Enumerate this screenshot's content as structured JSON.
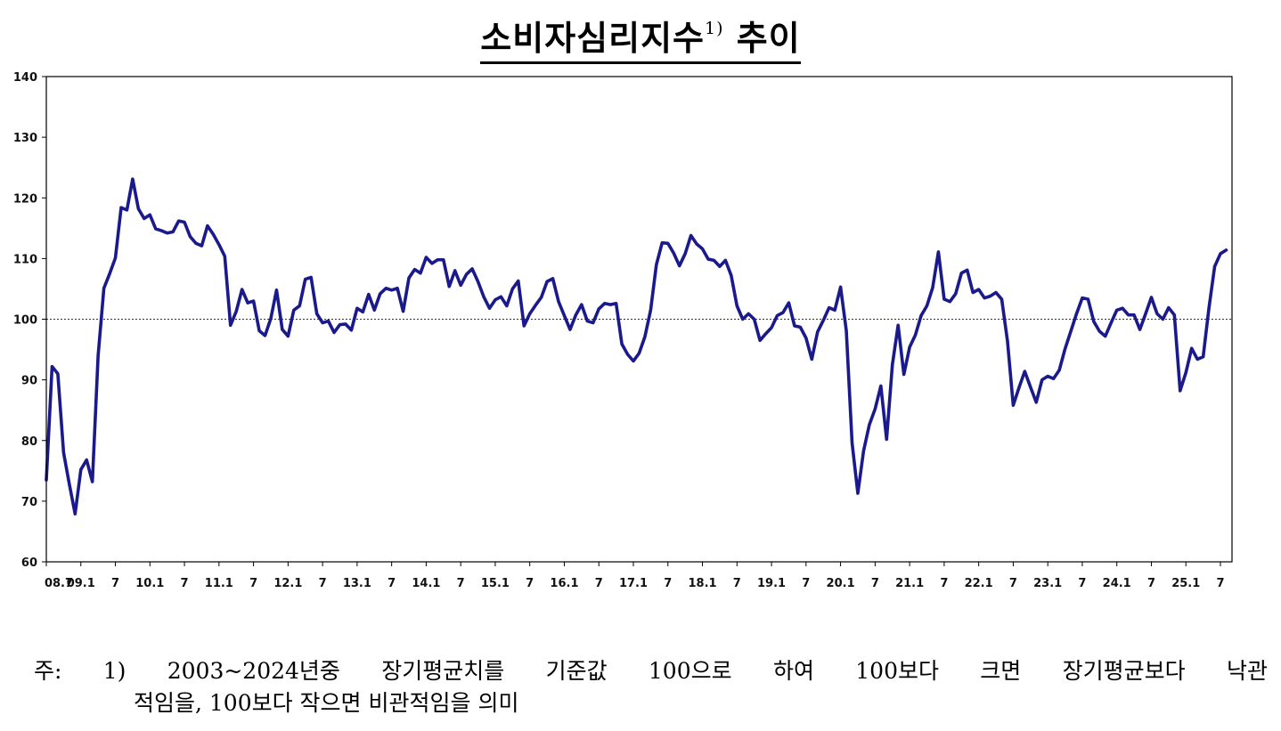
{
  "title": {
    "main": "소비자심리지수",
    "sup": "1)",
    "suffix": " 추이"
  },
  "footnote": {
    "line1": [
      "주:",
      "1)",
      "2003~2024년중",
      "장기평균치를",
      "기준값",
      "100으로",
      "하여",
      "100보다",
      "크면",
      "장기평균보다",
      "낙관"
    ],
    "line2": "적임을, 100보다 작으면 비관적임을 의미"
  },
  "colors": {
    "line": "#1a1a8c",
    "reference": "#333333",
    "frame": "#000000"
  },
  "chart_data": {
    "type": "line",
    "title": "소비자심리지수 추이",
    "ylim": [
      60,
      140
    ],
    "yticks": [
      60,
      70,
      80,
      90,
      100,
      110,
      120,
      130,
      140
    ],
    "reference_line": 100,
    "grid": false,
    "xtick_labels": [
      {
        "index": 0,
        "label": "08.7"
      },
      {
        "index": 6,
        "label": "09.1"
      },
      {
        "index": 12,
        "label": "7"
      },
      {
        "index": 18,
        "label": "10.1"
      },
      {
        "index": 24,
        "label": "7"
      },
      {
        "index": 30,
        "label": "11.1"
      },
      {
        "index": 36,
        "label": "7"
      },
      {
        "index": 42,
        "label": "12.1"
      },
      {
        "index": 48,
        "label": "7"
      },
      {
        "index": 54,
        "label": "13.1"
      },
      {
        "index": 60,
        "label": "7"
      },
      {
        "index": 66,
        "label": "14.1"
      },
      {
        "index": 72,
        "label": "7"
      },
      {
        "index": 78,
        "label": "15.1"
      },
      {
        "index": 84,
        "label": "7"
      },
      {
        "index": 90,
        "label": "16.1"
      },
      {
        "index": 96,
        "label": "7"
      },
      {
        "index": 102,
        "label": "17.1"
      },
      {
        "index": 108,
        "label": "7"
      },
      {
        "index": 114,
        "label": "18.1"
      },
      {
        "index": 120,
        "label": "7"
      },
      {
        "index": 126,
        "label": "19.1"
      },
      {
        "index": 132,
        "label": "7"
      },
      {
        "index": 138,
        "label": "20.1"
      },
      {
        "index": 144,
        "label": "7"
      },
      {
        "index": 150,
        "label": "21.1"
      },
      {
        "index": 156,
        "label": "7"
      },
      {
        "index": 162,
        "label": "22.1"
      },
      {
        "index": 168,
        "label": "7"
      },
      {
        "index": 174,
        "label": "23.1"
      },
      {
        "index": 180,
        "label": "7"
      },
      {
        "index": 186,
        "label": "24.1"
      },
      {
        "index": 192,
        "label": "7"
      },
      {
        "index": 198,
        "label": "25.1"
      },
      {
        "index": 204,
        "label": "7"
      }
    ],
    "series": [
      {
        "start": "2008-07",
        "frequency": "monthly",
        "values": [
          73.5,
          92.2,
          91.0,
          78.0,
          72.8,
          67.9,
          75.2,
          76.8,
          73.2,
          94.0,
          105.1,
          107.5,
          110.1,
          118.4,
          118.0,
          123.1,
          118.2,
          116.6,
          117.2,
          114.9,
          114.6,
          114.2,
          114.4,
          116.2,
          116.0,
          113.6,
          112.5,
          112.1,
          115.4,
          114.0,
          112.3,
          110.4,
          99.0,
          101.3,
          104.9,
          102.7,
          103.0,
          98.1,
          97.3,
          100.1,
          104.8,
          98.3,
          97.2,
          101.5,
          102.2,
          106.6,
          106.9,
          100.9,
          99.4,
          99.7,
          97.8,
          99.1,
          99.2,
          98.2,
          101.8,
          101.2,
          104.1,
          101.5,
          104.2,
          105.1,
          104.8,
          105.1,
          101.3,
          106.8,
          108.2,
          107.6,
          110.2,
          109.2,
          109.8,
          109.8,
          105.4,
          108.0,
          105.6,
          107.4,
          108.3,
          106.2,
          103.7,
          101.8,
          103.2,
          103.7,
          102.2,
          105.0,
          106.3,
          98.9,
          100.9,
          102.3,
          103.6,
          106.2,
          106.7,
          102.9,
          100.6,
          98.3,
          100.7,
          102.4,
          99.7,
          99.4,
          101.7,
          102.6,
          102.4,
          102.6,
          95.9,
          94.2,
          93.1,
          94.4,
          97.1,
          101.5,
          109.0,
          112.6,
          112.5,
          110.9,
          108.8,
          110.8,
          113.8,
          112.4,
          111.6,
          109.9,
          109.7,
          108.7,
          109.7,
          107.2,
          102.2,
          100.0,
          100.9,
          100.0,
          96.5,
          97.6,
          98.6,
          100.6,
          101.1,
          102.7,
          98.9,
          98.7,
          96.9,
          93.4,
          97.9,
          99.8,
          101.9,
          101.5,
          105.3,
          98.1,
          79.6,
          71.3,
          78.3,
          82.6,
          85.2,
          89.0,
          80.2,
          92.5,
          99.0,
          90.9,
          95.4,
          97.4,
          100.6,
          102.2,
          105.2,
          111.1,
          103.3,
          102.9,
          104.2,
          107.6,
          108.1,
          104.4,
          104.9,
          103.5,
          103.8,
          104.4,
          103.3,
          96.4,
          85.8,
          88.7,
          91.4,
          88.8,
          86.3,
          90.0,
          90.6,
          90.2,
          91.6,
          95.1,
          98.0,
          100.9,
          103.5,
          103.3,
          99.6,
          98.0,
          97.2,
          99.4,
          101.5,
          101.8,
          100.7,
          100.7,
          98.3,
          100.9,
          103.6,
          100.9,
          100.0,
          101.9,
          100.7,
          88.2,
          91.2,
          95.2,
          93.4,
          93.8,
          101.8,
          108.7,
          110.8,
          111.4
        ]
      }
    ]
  }
}
